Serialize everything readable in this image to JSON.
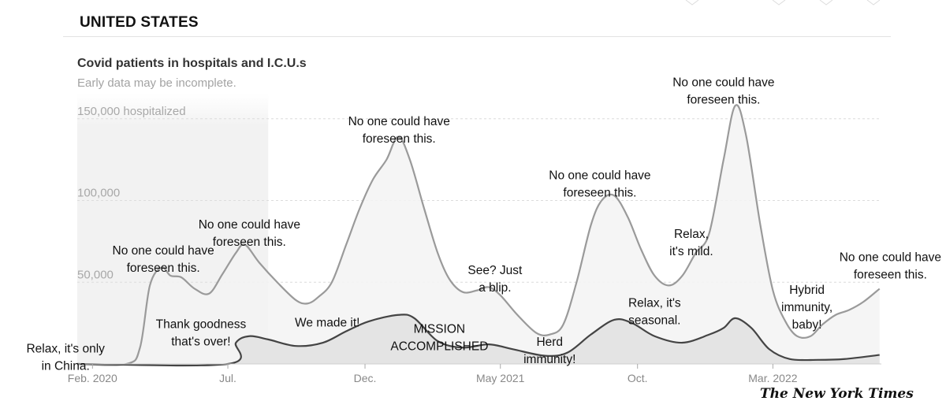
{
  "header": {
    "section_title": "UNITED STATES"
  },
  "chart_data": {
    "type": "area",
    "title": "Covid patients in hospitals and I.C.U.s",
    "subtitle": "Early data may be incomplete.",
    "y_unit_label": "150,000 hospitalized",
    "yticks": [
      {
        "value": 50000,
        "label": "50,000"
      },
      {
        "value": 100000,
        "label": "100,000"
      },
      {
        "value": 150000,
        "label": "150,000 hospitalized"
      }
    ],
    "ylim": [
      0,
      160000
    ],
    "xlim": [
      "2020-01-15",
      "2022-06-30"
    ],
    "xticks": [
      {
        "date": "2020-02-01",
        "label": "Feb. 2020"
      },
      {
        "date": "2020-07-01",
        "label": "Jul."
      },
      {
        "date": "2020-12-01",
        "label": "Dec."
      },
      {
        "date": "2021-05-01",
        "label": "May 2021"
      },
      {
        "date": "2021-10-01",
        "label": "Oct."
      },
      {
        "date": "2022-03-01",
        "label": "Mar. 2022"
      }
    ],
    "grid": true,
    "shaded_period": {
      "start": "2020-01-15",
      "end": "2020-08-15"
    },
    "series": [
      {
        "name": "Hospitalized",
        "points": [
          [
            "2020-01-15",
            0
          ],
          [
            "2020-03-10",
            0
          ],
          [
            "2020-03-25",
            10000
          ],
          [
            "2020-04-05",
            48000
          ],
          [
            "2020-04-18",
            59000
          ],
          [
            "2020-04-28",
            54000
          ],
          [
            "2020-05-10",
            53000
          ],
          [
            "2020-05-25",
            46000
          ],
          [
            "2020-06-10",
            43000
          ],
          [
            "2020-06-25",
            55000
          ],
          [
            "2020-07-10",
            68000
          ],
          [
            "2020-07-20",
            73000
          ],
          [
            "2020-08-05",
            62000
          ],
          [
            "2020-08-25",
            50000
          ],
          [
            "2020-09-15",
            39000
          ],
          [
            "2020-09-28",
            37000
          ],
          [
            "2020-10-10",
            41000
          ],
          [
            "2020-10-25",
            50000
          ],
          [
            "2020-11-10",
            73000
          ],
          [
            "2020-11-25",
            95000
          ],
          [
            "2020-12-10",
            113000
          ],
          [
            "2020-12-25",
            125000
          ],
          [
            "2021-01-07",
            139000
          ],
          [
            "2021-01-20",
            125000
          ],
          [
            "2021-02-05",
            95000
          ],
          [
            "2021-02-20",
            68000
          ],
          [
            "2021-03-05",
            52000
          ],
          [
            "2021-03-20",
            44000
          ],
          [
            "2021-04-05",
            45000
          ],
          [
            "2021-04-18",
            47000
          ],
          [
            "2021-05-01",
            42000
          ],
          [
            "2021-05-20",
            30000
          ],
          [
            "2021-06-10",
            19000
          ],
          [
            "2021-06-25",
            18000
          ],
          [
            "2021-07-10",
            24000
          ],
          [
            "2021-07-25",
            50000
          ],
          [
            "2021-08-10",
            85000
          ],
          [
            "2021-08-22",
            100000
          ],
          [
            "2021-09-05",
            103000
          ],
          [
            "2021-09-20",
            90000
          ],
          [
            "2021-10-05",
            70000
          ],
          [
            "2021-10-20",
            54000
          ],
          [
            "2021-11-05",
            48000
          ],
          [
            "2021-11-20",
            54000
          ],
          [
            "2021-12-05",
            68000
          ],
          [
            "2021-12-20",
            80000
          ],
          [
            "2022-01-05",
            125000
          ],
          [
            "2022-01-18",
            158000
          ],
          [
            "2022-01-30",
            140000
          ],
          [
            "2022-02-15",
            85000
          ],
          [
            "2022-03-01",
            45000
          ],
          [
            "2022-03-15",
            26000
          ],
          [
            "2022-03-28",
            17000
          ],
          [
            "2022-04-12",
            17000
          ],
          [
            "2022-04-25",
            24000
          ],
          [
            "2022-05-10",
            30000
          ],
          [
            "2022-05-25",
            33000
          ],
          [
            "2022-06-10",
            38000
          ],
          [
            "2022-06-28",
            46000
          ]
        ]
      },
      {
        "name": "I.C.U.",
        "points": [
          [
            "2020-01-15",
            0
          ],
          [
            "2020-07-01",
            0
          ],
          [
            "2020-07-10",
            13000
          ],
          [
            "2020-07-25",
            17000
          ],
          [
            "2020-08-15",
            15000
          ],
          [
            "2020-09-15",
            11000
          ],
          [
            "2020-10-15",
            13000
          ],
          [
            "2020-11-10",
            20000
          ],
          [
            "2020-12-05",
            26000
          ],
          [
            "2021-01-07",
            30000
          ],
          [
            "2021-01-25",
            28000
          ],
          [
            "2021-02-20",
            14000
          ],
          [
            "2021-03-20",
            10000
          ],
          [
            "2021-04-18",
            12000
          ],
          [
            "2021-05-15",
            9000
          ],
          [
            "2021-06-20",
            5000
          ],
          [
            "2021-07-15",
            7000
          ],
          [
            "2021-08-10",
            18000
          ],
          [
            "2021-09-05",
            27000
          ],
          [
            "2021-09-25",
            25000
          ],
          [
            "2021-10-20",
            17000
          ],
          [
            "2021-11-20",
            13000
          ],
          [
            "2021-12-20",
            18000
          ],
          [
            "2022-01-05",
            22000
          ],
          [
            "2022-01-18",
            28000
          ],
          [
            "2022-02-05",
            22000
          ],
          [
            "2022-02-25",
            9000
          ],
          [
            "2022-03-20",
            3000
          ],
          [
            "2022-04-20",
            2500
          ],
          [
            "2022-05-20",
            3000
          ],
          [
            "2022-06-28",
            5500
          ]
        ]
      }
    ],
    "annotations": [
      {
        "lines": [
          "Relax, it's only",
          "in China."
        ],
        "date": "2020-01-02",
        "value": 7000
      },
      {
        "lines": [
          "No one could have",
          "foreseen this."
        ],
        "date": "2020-04-20",
        "value": 67000
      },
      {
        "lines": [
          "Thank goodness",
          "that's over!"
        ],
        "date": "2020-06-01",
        "value": 22000
      },
      {
        "lines": [
          "No one could have",
          "foreseen this."
        ],
        "date": "2020-07-25",
        "value": 83000
      },
      {
        "lines": [
          "We made it!"
        ],
        "date": "2020-10-20",
        "value": 23000
      },
      {
        "lines": [
          "No one could have",
          "foreseen this."
        ],
        "date": "2021-01-08",
        "value": 146000
      },
      {
        "lines": [
          "MISSION",
          "ACCOMPLISHED"
        ],
        "date": "2021-02-22",
        "value": 19000
      },
      {
        "lines": [
          "See? Just",
          "a blip."
        ],
        "date": "2021-04-25",
        "value": 55000
      },
      {
        "lines": [
          "Herd",
          "immunity!"
        ],
        "date": "2021-06-25",
        "value": 11000
      },
      {
        "lines": [
          "No one could have",
          "foreseen this."
        ],
        "date": "2021-08-20",
        "value": 113000
      },
      {
        "lines": [
          "Relax,",
          "it's mild."
        ],
        "date": "2021-11-30",
        "value": 77000
      },
      {
        "lines": [
          "Relax, it's",
          "seasonal."
        ],
        "date": "2021-10-20",
        "value": 35000
      },
      {
        "lines": [
          "No one could have",
          "foreseen this."
        ],
        "date": "2022-01-05",
        "value": 170000
      },
      {
        "lines": [
          "Hybrid",
          "immunity,",
          "baby!"
        ],
        "date": "2022-04-08",
        "value": 43000
      },
      {
        "lines": [
          "No one could have",
          "foreseen this."
        ],
        "date": "2022-07-10",
        "value": 63000
      }
    ]
  },
  "footer": {
    "logo_text": "The New York Times"
  }
}
